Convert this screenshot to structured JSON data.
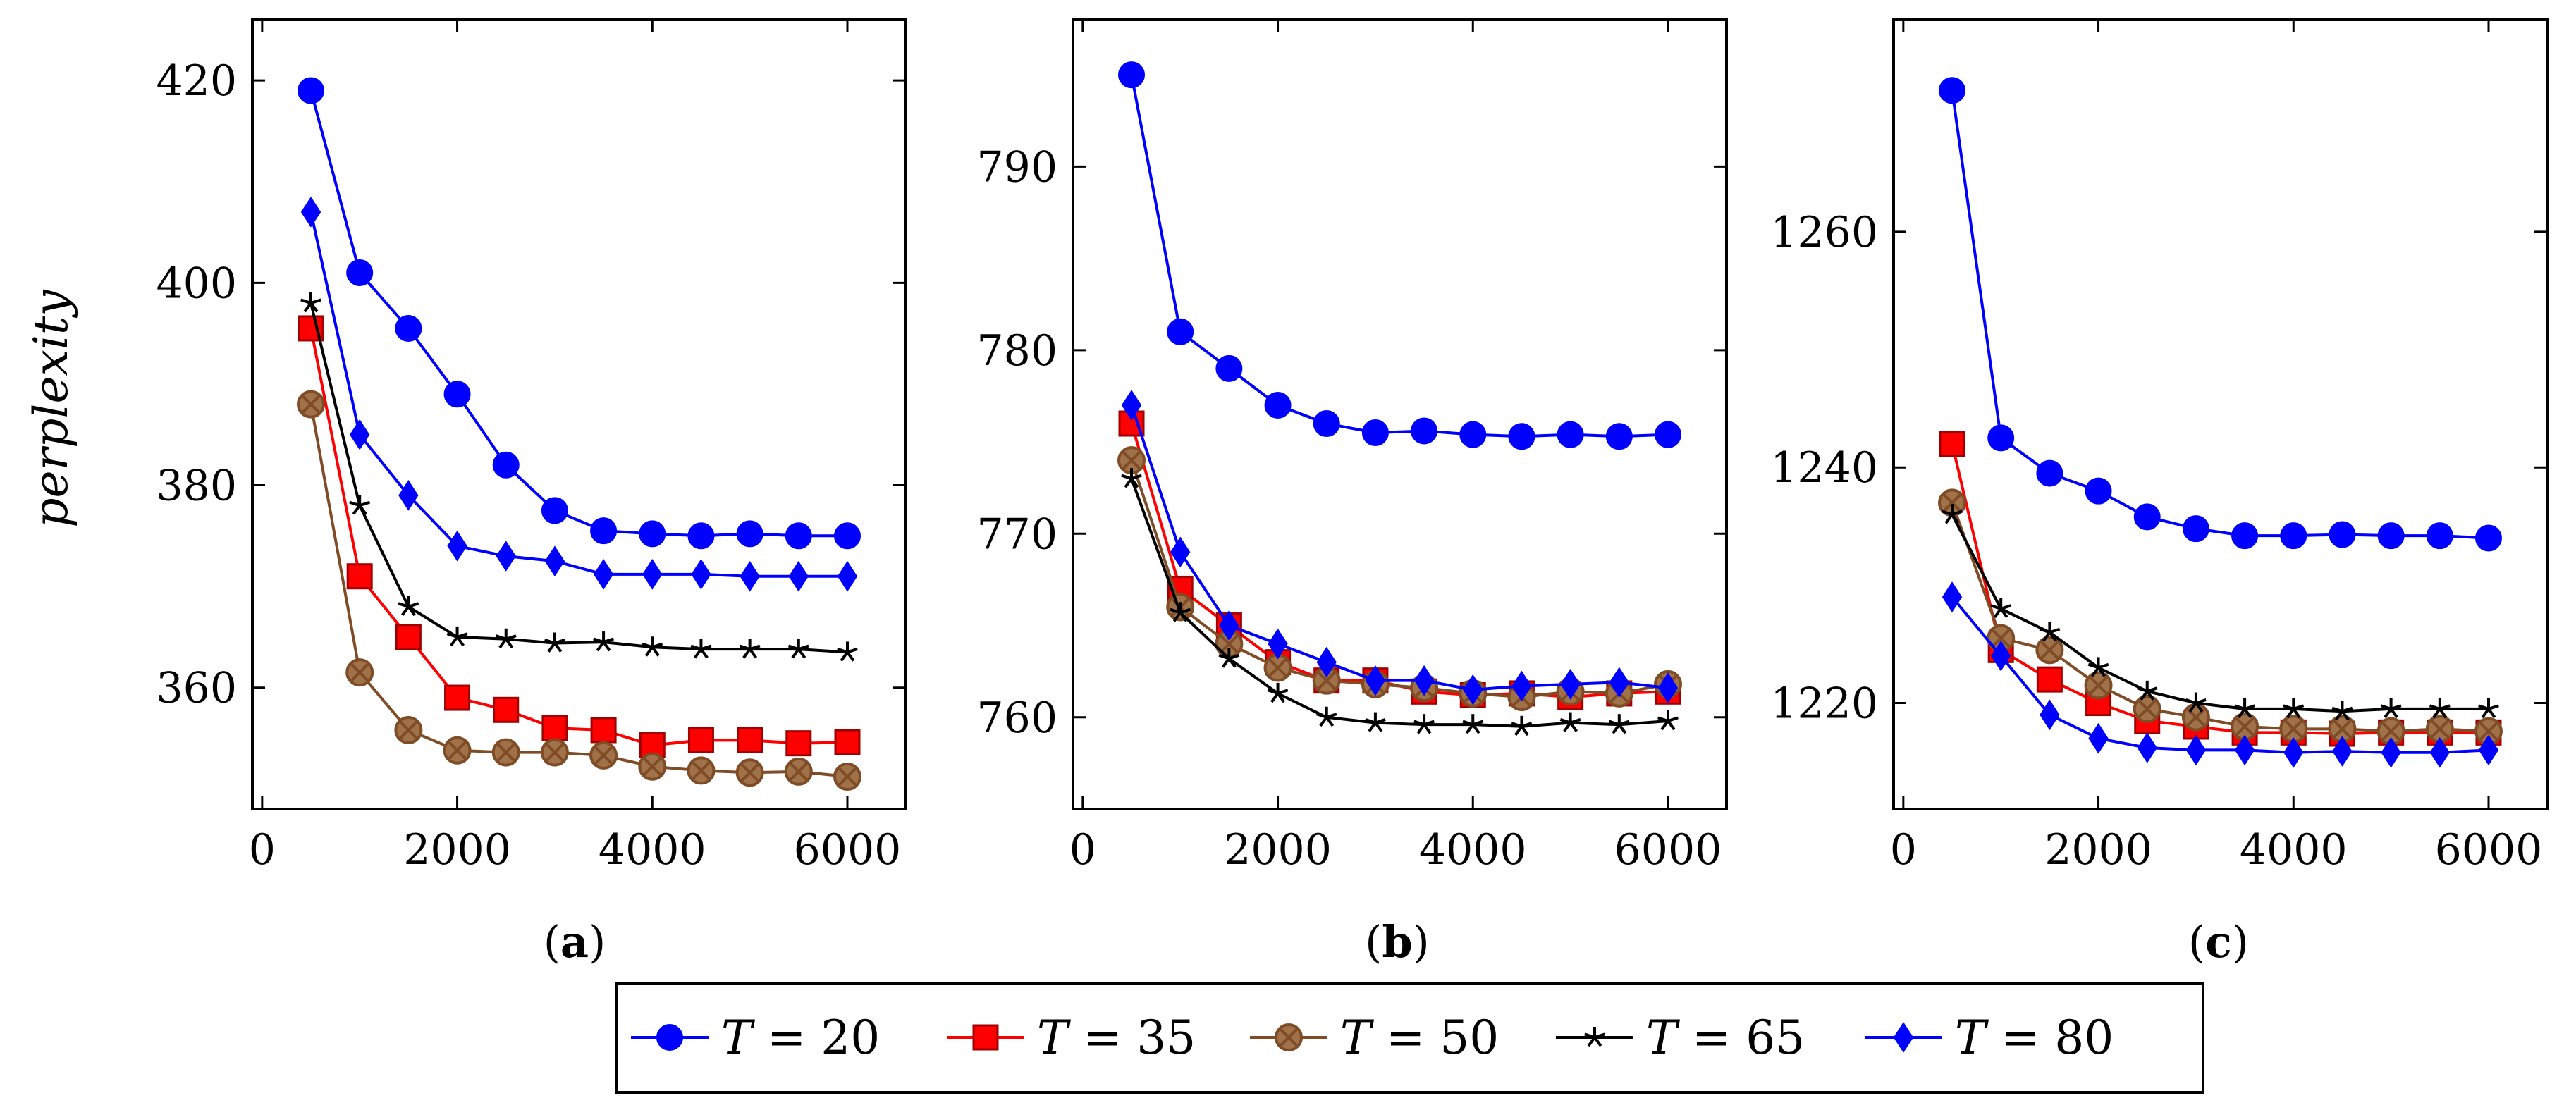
{
  "chart_data": [
    {
      "type": "line",
      "id": "a",
      "panel_label": "a",
      "ylabel": "perplexity",
      "xlim": [
        -100,
        6600
      ],
      "ylim": [
        348,
        426
      ],
      "xticks": [
        0,
        2000,
        4000,
        6000
      ],
      "yticks": [
        360,
        380,
        400,
        420
      ],
      "x": [
        500,
        1000,
        1500,
        2000,
        2500,
        3000,
        3500,
        4000,
        4500,
        5000,
        5500,
        6000
      ],
      "series": [
        {
          "name": "T = 20",
          "values": [
            419,
            401,
            395.5,
            389,
            382,
            377.5,
            375.5,
            375.2,
            375,
            375.2,
            375,
            375
          ]
        },
        {
          "name": "T = 35",
          "values": [
            395.5,
            371,
            365,
            359,
            357.8,
            356,
            355.8,
            354.3,
            354.8,
            354.8,
            354.5,
            354.6
          ]
        },
        {
          "name": "T = 50",
          "values": [
            388,
            361.5,
            355.8,
            353.8,
            353.6,
            353.6,
            353.3,
            352.2,
            351.8,
            351.6,
            351.7,
            351.2
          ]
        },
        {
          "name": "T = 65",
          "values": [
            398,
            378,
            368,
            365,
            364.8,
            364.4,
            364.5,
            364,
            363.8,
            363.8,
            363.8,
            363.5
          ]
        },
        {
          "name": "T = 80",
          "values": [
            407,
            385,
            379,
            374,
            373,
            372.5,
            371.2,
            371.2,
            371.2,
            371,
            371,
            371
          ]
        }
      ]
    },
    {
      "type": "line",
      "id": "b",
      "panel_label": "b",
      "ylabel": "",
      "xlim": [
        -100,
        6600
      ],
      "ylim": [
        755,
        798
      ],
      "xticks": [
        0,
        2000,
        4000,
        6000
      ],
      "yticks": [
        760,
        770,
        780,
        790
      ],
      "x": [
        500,
        1000,
        1500,
        2000,
        2500,
        3000,
        3500,
        4000,
        4500,
        5000,
        5500,
        6000
      ],
      "series": [
        {
          "name": "T = 20",
          "values": [
            795,
            781,
            779,
            777,
            776,
            775.5,
            775.6,
            775.4,
            775.3,
            775.4,
            775.3,
            775.4
          ]
        },
        {
          "name": "T = 35",
          "values": [
            776,
            767,
            765,
            763,
            762,
            762,
            761.4,
            761.2,
            761.3,
            761.1,
            761.3,
            761.4
          ]
        },
        {
          "name": "T = 50",
          "values": [
            774,
            766,
            764,
            762.7,
            762,
            761.8,
            761.6,
            761.3,
            761.1,
            761.4,
            761.3,
            761.8
          ]
        },
        {
          "name": "T = 65",
          "values": [
            773,
            765.7,
            763.2,
            761.3,
            760,
            759.7,
            759.6,
            759.6,
            759.5,
            759.7,
            759.6,
            759.8
          ]
        },
        {
          "name": "T = 80",
          "values": [
            777,
            769,
            765,
            764,
            763,
            762,
            762,
            761.5,
            761.7,
            761.8,
            761.9,
            761.6
          ]
        }
      ]
    },
    {
      "type": "line",
      "id": "c",
      "panel_label": "c",
      "ylabel": "",
      "xlim": [
        -100,
        6600
      ],
      "ylim": [
        1211,
        1278
      ],
      "xticks": [
        0,
        2000,
        4000,
        6000
      ],
      "yticks": [
        1220,
        1240,
        1260
      ],
      "x": [
        500,
        1000,
        1500,
        2000,
        2500,
        3000,
        3500,
        4000,
        4500,
        5000,
        5500,
        6000
      ],
      "series": [
        {
          "name": "T = 20",
          "values": [
            1272,
            1242.5,
            1239.5,
            1238,
            1235.8,
            1234.8,
            1234.2,
            1234.2,
            1234.3,
            1234.2,
            1234.2,
            1234
          ]
        },
        {
          "name": "T = 35",
          "values": [
            1242,
            1224.5,
            1222,
            1220,
            1218.5,
            1218,
            1217.5,
            1217.5,
            1217.4,
            1217.5,
            1217.5,
            1217.5
          ]
        },
        {
          "name": "T = 50",
          "values": [
            1237,
            1225.5,
            1224.5,
            1221.5,
            1219.5,
            1218.8,
            1218,
            1217.8,
            1217.8,
            1217.6,
            1217.8,
            1217.6
          ]
        },
        {
          "name": "T = 65",
          "values": [
            1236,
            1228,
            1226,
            1223,
            1221,
            1220,
            1219.5,
            1219.5,
            1219.3,
            1219.5,
            1219.5,
            1219.5
          ]
        },
        {
          "name": "T = 80",
          "values": [
            1229,
            1224,
            1219,
            1217,
            1216.2,
            1216,
            1216,
            1215.8,
            1215.9,
            1215.8,
            1215.8,
            1216
          ]
        }
      ]
    }
  ],
  "legend": {
    "placement": "bottom-center",
    "entries": [
      {
        "var": "T",
        "eq": " = 20",
        "color": "#0000ff",
        "marker": "circle"
      },
      {
        "var": "T",
        "eq": " = 35",
        "color": "#ff0000",
        "marker": "square"
      },
      {
        "var": "T",
        "eq": " = 50",
        "color": "#7f4c26",
        "marker": "otimes"
      },
      {
        "var": "T",
        "eq": " = 65",
        "color": "#000000",
        "marker": "star"
      },
      {
        "var": "T",
        "eq": " = 80",
        "color": "#0000ff",
        "marker": "diamond"
      }
    ]
  },
  "series_colors": [
    "#0000ff",
    "#ff0000",
    "#7f4c26",
    "#000000",
    "#0000ff"
  ],
  "series_markers": [
    "circle",
    "square",
    "otimes",
    "star",
    "diamond"
  ]
}
